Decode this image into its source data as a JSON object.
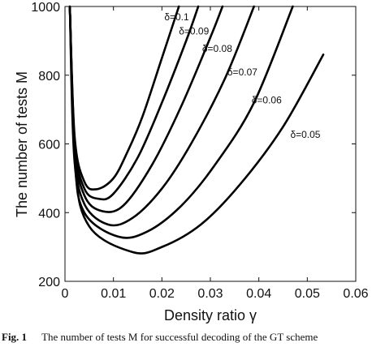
{
  "chart_data": {
    "type": "line",
    "title": "",
    "xlabel": "Density ratio γ",
    "ylabel": "The number of tests M",
    "xlim": [
      0,
      0.06
    ],
    "ylim": [
      200,
      1000
    ],
    "xticks": [
      "0",
      "0.01",
      "0.02",
      "0.03",
      "0.04",
      "0.05",
      "0.06"
    ],
    "yticks": [
      "200",
      "400",
      "600",
      "800",
      "1000"
    ],
    "grid": false,
    "legend": "none",
    "series": [
      {
        "name": "δ=0.1",
        "x": [
          0.001,
          0.002,
          0.004,
          0.0065,
          0.01,
          0.013,
          0.016,
          0.02,
          0.0235
        ],
        "y": [
          1000,
          620,
          490,
          468,
          500,
          580,
          680,
          850,
          1000
        ]
      },
      {
        "name": "δ=0.09",
        "x": [
          0.001,
          0.002,
          0.004,
          0.007,
          0.01,
          0.015,
          0.02,
          0.025,
          0.0275
        ],
        "y": [
          1000,
          605,
          470,
          440,
          455,
          560,
          720,
          900,
          1000
        ]
      },
      {
        "name": "δ=0.08",
        "x": [
          0.001,
          0.002,
          0.004,
          0.0075,
          0.012,
          0.018,
          0.024,
          0.03,
          0.0325
        ],
        "y": [
          1000,
          590,
          450,
          405,
          420,
          540,
          710,
          910,
          1000
        ]
      },
      {
        "name": "δ=0.07",
        "x": [
          0.001,
          0.002,
          0.004,
          0.009,
          0.014,
          0.02,
          0.026,
          0.033,
          0.039
        ],
        "y": [
          1000,
          575,
          425,
          365,
          385,
          470,
          600,
          790,
          1000
        ]
      },
      {
        "name": "δ=0.06",
        "x": [
          0.001,
          0.002,
          0.004,
          0.011,
          0.017,
          0.024,
          0.031,
          0.039,
          0.047
        ],
        "y": [
          1000,
          560,
          400,
          330,
          345,
          420,
          540,
          720,
          1000
        ]
      },
      {
        "name": "δ=0.05",
        "x": [
          0.001,
          0.002,
          0.005,
          0.014,
          0.02,
          0.028,
          0.036,
          0.045,
          0.0533
        ],
        "y": [
          1000,
          545,
          360,
          285,
          300,
          365,
          480,
          650,
          860
        ]
      }
    ],
    "annotations": [
      {
        "text": "δ=0.1",
        "x": 0.0205,
        "y": 960
      },
      {
        "text": "δ=0.09",
        "x": 0.0235,
        "y": 918
      },
      {
        "text": "δ=0.08",
        "x": 0.0283,
        "y": 868
      },
      {
        "text": "δ=0.07",
        "x": 0.0335,
        "y": 800
      },
      {
        "text": "δ=0.06",
        "x": 0.0385,
        "y": 718
      },
      {
        "text": "δ=0.05",
        "x": 0.0465,
        "y": 618
      }
    ]
  },
  "caption": {
    "label": "Fig. 1",
    "text": "The number of tests M for successful decoding of the GT scheme"
  }
}
